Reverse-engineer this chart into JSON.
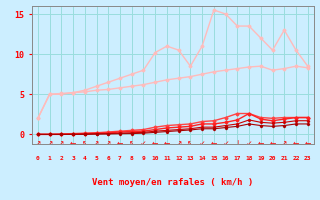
{
  "xlabel": "Vent moyen/en rafales ( km/h )",
  "bg_color": "#cceeff",
  "grid_color": "#99dddd",
  "x_values": [
    0,
    1,
    2,
    3,
    4,
    5,
    6,
    7,
    8,
    9,
    10,
    11,
    12,
    13,
    14,
    15,
    16,
    17,
    18,
    19,
    20,
    21,
    22,
    23
  ],
  "ylim": [
    -1.2,
    16
  ],
  "yticks": [
    0,
    5,
    10,
    15
  ],
  "lines": [
    {
      "y": [
        2.0,
        5.0,
        5.1,
        5.2,
        5.3,
        5.5,
        5.6,
        5.8,
        6.0,
        6.2,
        6.5,
        6.8,
        7.0,
        7.2,
        7.5,
        7.8,
        8.0,
        8.2,
        8.4,
        8.5,
        8.0,
        8.2,
        8.5,
        8.3
      ],
      "color": "#ffbbbb",
      "lw": 1.0,
      "marker": "D",
      "ms": 1.5
    },
    {
      "y": [
        2.0,
        5.0,
        5.0,
        5.2,
        5.5,
        6.0,
        6.5,
        7.0,
        7.5,
        8.0,
        10.2,
        11.0,
        10.5,
        8.5,
        11.0,
        15.5,
        15.0,
        13.5,
        13.5,
        12.0,
        10.5,
        13.0,
        10.5,
        8.5
      ],
      "color": "#ffbbbb",
      "lw": 1.0,
      "marker": "D",
      "ms": 1.5
    },
    {
      "y": [
        0,
        0,
        0.05,
        0.1,
        0.15,
        0.2,
        0.3,
        0.4,
        0.5,
        0.6,
        0.9,
        1.1,
        1.2,
        1.3,
        1.6,
        1.7,
        2.1,
        2.6,
        2.6,
        2.1,
        2.0,
        2.1,
        2.1,
        2.1
      ],
      "color": "#ff4444",
      "lw": 1.0,
      "marker": "D",
      "ms": 1.5
    },
    {
      "y": [
        0,
        0,
        0,
        0.05,
        0.1,
        0.15,
        0.2,
        0.3,
        0.35,
        0.4,
        0.6,
        0.8,
        0.9,
        1.0,
        1.3,
        1.3,
        1.5,
        1.8,
        2.6,
        1.9,
        1.7,
        1.9,
        2.1,
        2.1
      ],
      "color": "#ff2222",
      "lw": 1.0,
      "marker": "D",
      "ms": 1.5
    },
    {
      "y": [
        0,
        0,
        0,
        0,
        0.05,
        0.08,
        0.1,
        0.15,
        0.2,
        0.25,
        0.4,
        0.5,
        0.6,
        0.7,
        0.9,
        0.9,
        1.1,
        1.3,
        1.8,
        1.5,
        1.4,
        1.5,
        1.7,
        1.7
      ],
      "color": "#cc0000",
      "lw": 0.8,
      "marker": "D",
      "ms": 1.2
    },
    {
      "y": [
        0,
        0,
        0,
        0,
        0,
        0.03,
        0.05,
        0.08,
        0.1,
        0.15,
        0.25,
        0.35,
        0.45,
        0.55,
        0.7,
        0.7,
        0.85,
        1.0,
        1.3,
        1.1,
        1.0,
        1.1,
        1.3,
        1.3
      ],
      "color": "#aa0000",
      "lw": 0.8,
      "marker": "D",
      "ms": 1.2
    }
  ],
  "arrow_symbols": [
    "↗",
    "↗",
    "↗",
    "←",
    "↖",
    "↗",
    "↗",
    "←",
    "↖",
    "↙",
    "←",
    "←",
    "↗",
    "↖",
    "↙",
    "←",
    "↙",
    "↓",
    "↙",
    "←",
    "←",
    "↗",
    "←",
    "←"
  ]
}
